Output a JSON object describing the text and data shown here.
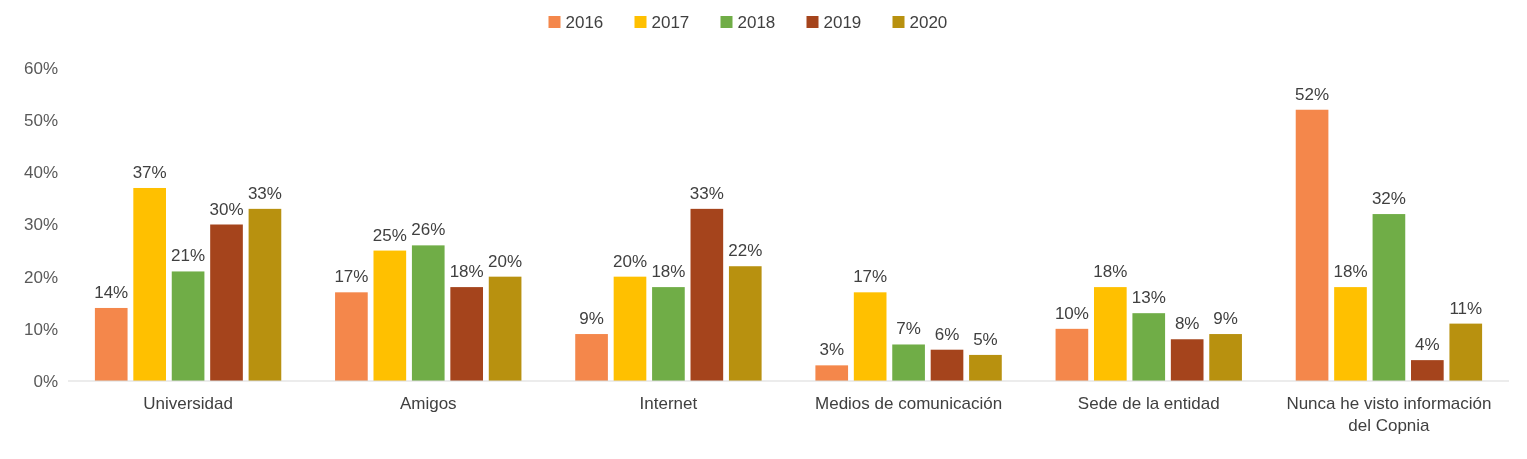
{
  "chart_data": {
    "type": "bar",
    "categories": [
      "Universidad",
      "Amigos",
      "Internet",
      "Medios de comunicación",
      "Sede de la entidad",
      "Nunca he visto información del Copnia"
    ],
    "series": [
      {
        "name": "2016",
        "color": "#f4874b",
        "values": [
          14,
          17,
          9,
          3,
          10,
          52
        ],
        "value_labels": [
          "14%",
          "17%",
          "9%",
          "3%",
          "10%",
          "52%"
        ]
      },
      {
        "name": "2017",
        "color": "#ffc000",
        "values": [
          37,
          25,
          20,
          17,
          18,
          18
        ],
        "value_labels": [
          "37%",
          "25%",
          "20%",
          "17%",
          "18%",
          "18%"
        ]
      },
      {
        "name": "2018",
        "color": "#70ad47",
        "values": [
          21,
          26,
          18,
          7,
          13,
          32
        ],
        "value_labels": [
          "21%",
          "26%",
          "18%",
          "7%",
          "13%",
          "32%"
        ]
      },
      {
        "name": "2019",
        "color": "#a5441c",
        "values": [
          30,
          18,
          33,
          6,
          8,
          4
        ],
        "value_labels": [
          "30%",
          "18%",
          "33%",
          "6%",
          "8%",
          "4%"
        ]
      },
      {
        "name": "2020",
        "color": "#b8910f",
        "values": [
          33,
          20,
          22,
          5,
          9,
          11
        ],
        "value_labels": [
          "33%",
          "20%",
          "22%",
          "5%",
          "9%",
          "11%"
        ]
      }
    ],
    "ylim": [
      0,
      60
    ],
    "yticks": [
      {
        "value": 0,
        "label": "0%"
      },
      {
        "value": 10,
        "label": "10%"
      },
      {
        "value": 20,
        "label": "20%"
      },
      {
        "value": 30,
        "label": "30%"
      },
      {
        "value": 40,
        "label": "40%"
      },
      {
        "value": 50,
        "label": "50%"
      },
      {
        "value": 60,
        "label": "60%"
      }
    ],
    "grid": false,
    "legend": "top"
  }
}
